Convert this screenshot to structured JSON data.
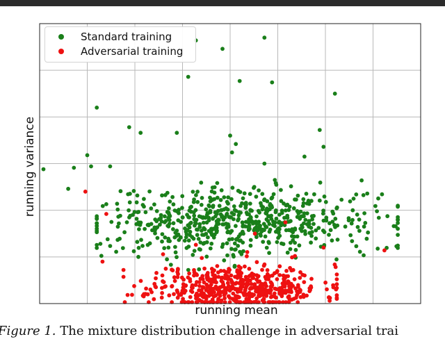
{
  "chart_data": {
    "type": "scatter",
    "title": "",
    "xlabel": "running mean",
    "ylabel": "running variance",
    "xlim": [
      0,
      100
    ],
    "ylim": [
      0,
      100
    ],
    "xticks": [
      0,
      12.5,
      25,
      37.5,
      50,
      62.5,
      75,
      87.5,
      100
    ],
    "yticks": [
      0,
      16.67,
      33.33,
      50,
      66.67,
      83.33,
      100
    ],
    "tick_labels_visible": false,
    "grid": true,
    "legend_position": "top-left",
    "series": [
      {
        "name": "Standard training",
        "color": "#1a7f1a",
        "outliers": [
          [
            1,
            48
          ],
          [
            7.5,
            41
          ],
          [
            9,
            48.5
          ],
          [
            12.5,
            53
          ],
          [
            13.5,
            49
          ],
          [
            15,
            70
          ],
          [
            17.5,
            35.5
          ],
          [
            18.5,
            49
          ],
          [
            23.5,
            63
          ],
          [
            26.5,
            61
          ],
          [
            36,
            61
          ],
          [
            39,
            81
          ],
          [
            41,
            94
          ],
          [
            48,
            91
          ],
          [
            50,
            60
          ],
          [
            50.5,
            54
          ],
          [
            51.5,
            57
          ],
          [
            52.5,
            79.5
          ],
          [
            59,
            95
          ],
          [
            59,
            50
          ],
          [
            61,
            79
          ],
          [
            69.5,
            52.5
          ],
          [
            73.5,
            62
          ],
          [
            74.5,
            56
          ],
          [
            77.5,
            75
          ],
          [
            84.5,
            44
          ]
        ],
        "cluster": {
          "n": 640,
          "x_center": 52,
          "x_spread": 18,
          "y_center": 29,
          "y_spread": 6,
          "x_range": [
            15,
            94
          ],
          "y_range": [
            12,
            48
          ]
        },
        "seed": 7
      },
      {
        "name": "Adversarial training",
        "color": "#ee1111",
        "outliers": [
          [
            12,
            40
          ],
          [
            17.5,
            32
          ],
          [
            16.5,
            15
          ],
          [
            22,
            12
          ],
          [
            41,
            21
          ],
          [
            56.5,
            25
          ],
          [
            64.5,
            29
          ],
          [
            67,
            17
          ],
          [
            74.5,
            20
          ],
          [
            90.5,
            19
          ]
        ],
        "cluster": {
          "n": 540,
          "x_center": 52,
          "x_spread": 11,
          "y_center": 6,
          "y_spread": 4,
          "x_range": [
            22,
            78
          ],
          "y_range": [
            0.5,
            19
          ]
        },
        "seed": 11
      }
    ]
  },
  "caption": {
    "label": "Figure 1.",
    "text": "The mixture distribution challenge in adversarial trai"
  }
}
